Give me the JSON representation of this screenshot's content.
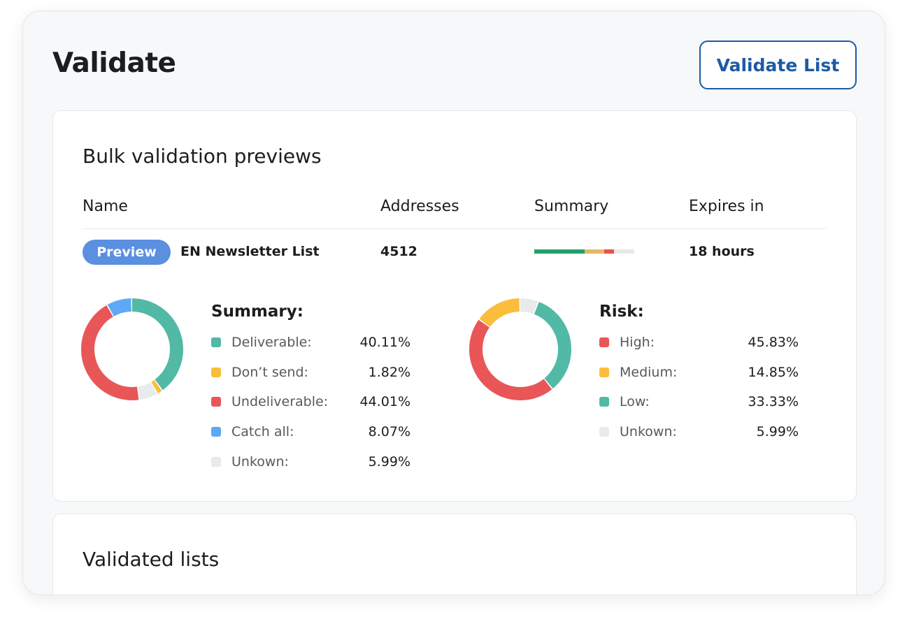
{
  "page": {
    "title": "Validate",
    "validate_button": "Validate List"
  },
  "previews": {
    "title": "Bulk validation previews",
    "columns": [
      "Name",
      "Addresses",
      "Summary",
      "Expires in"
    ],
    "row": {
      "badge": "Preview",
      "name": "EN Newsletter List",
      "addresses": "4512",
      "expires": "18 hours",
      "summary_bar": [
        {
          "fraction": 0.5,
          "color": "#22a06b"
        },
        {
          "fraction": 0.2,
          "color": "#e3b867"
        },
        {
          "fraction": 0.1,
          "color": "#e5534b"
        },
        {
          "fraction": 0.2,
          "color": "#e6e8ea"
        }
      ]
    },
    "summary": {
      "title": "Summary:",
      "items": [
        {
          "label": "Deliverable:",
          "value": "40.11%",
          "pct": 40.11,
          "color": "#52b9a6"
        },
        {
          "label": "Don’t send:",
          "value": "1.82%",
          "pct": 1.82,
          "color": "#fbbd3c"
        },
        {
          "label": "Undeliverable:",
          "value": "44.01%",
          "pct": 44.01,
          "color": "#e85658"
        },
        {
          "label": "Catch all:",
          "value": "8.07%",
          "pct": 8.07,
          "color": "#5fa8f5"
        },
        {
          "label": "Unkown:",
          "value": "5.99%",
          "pct": 5.99,
          "color": "#e8eaeb"
        }
      ],
      "ring_order": [
        0,
        1,
        4,
        2,
        3
      ]
    },
    "risk": {
      "title": "Risk:",
      "items": [
        {
          "label": "High:",
          "value": "45.83%",
          "pct": 45.83,
          "color": "#e85658"
        },
        {
          "label": "Medium:",
          "value": "14.85%",
          "pct": 14.85,
          "color": "#fbbd3c"
        },
        {
          "label": "Low:",
          "value": "33.33%",
          "pct": 33.33,
          "color": "#52b9a6"
        },
        {
          "label": "Unkown:",
          "value": "5.99%",
          "pct": 5.99,
          "color": "#e8eaeb"
        }
      ],
      "ring_order": [
        3,
        2,
        0,
        1
      ]
    }
  },
  "validated": {
    "title": "Validated lists"
  }
}
